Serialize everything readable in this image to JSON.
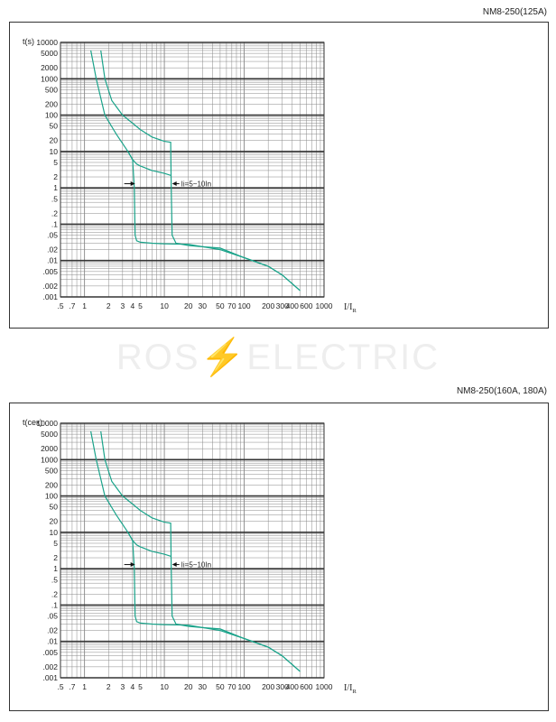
{
  "watermark": {
    "left": "ROS",
    "bolt": "⚡",
    "right": "ELECTRIC"
  },
  "colors": {
    "curve": "#1aa38a",
    "grid_major": "#333333",
    "grid_minor": "#888888",
    "frame": "#333333"
  },
  "chart_data": [
    {
      "type": "line",
      "title": "NM8-250(125A)",
      "ylabel": "t(s)",
      "xlabel": "I/IR",
      "x_scale": "log",
      "y_scale": "log",
      "xlim": [
        0.5,
        1000
      ],
      "ylim": [
        0.001,
        10000
      ],
      "x_ticks": [
        ".5",
        ".7",
        "1",
        "2",
        "3",
        "4",
        "5",
        "10",
        "20",
        "30",
        "50",
        "70",
        "100",
        "200",
        "300",
        "400",
        "600",
        "1000"
      ],
      "y_ticks": [
        "10000",
        "5000",
        "2000",
        "1000",
        "500",
        "200",
        "100",
        "50",
        "20",
        "10",
        "5",
        "2",
        "1",
        ".5",
        ".2",
        ".1",
        ".05",
        ".02",
        ".01",
        ".005",
        ".002",
        ".001"
      ],
      "annotation": "Ii=5~10In",
      "series": [
        {
          "x": [
            1.6,
            1.8,
            2.2,
            3,
            4,
            5,
            7,
            10,
            12,
            12.2,
            12.5,
            14,
            20,
            30,
            50,
            100,
            200,
            300,
            500
          ],
          "y": [
            6000,
            1000,
            250,
            100,
            60,
            40,
            25,
            19,
            18,
            1,
            0.05,
            0.03,
            0.026,
            0.024,
            0.022,
            0.012,
            0.007,
            0.004,
            0.0015
          ]
        },
        {
          "x": [
            1.2,
            1.4,
            1.8,
            2.5,
            3.5,
            4,
            4.2,
            4.3,
            4.5,
            5,
            7,
            10,
            20,
            50,
            100,
            200,
            300,
            500
          ],
          "y": [
            6000,
            1000,
            100,
            30,
            10,
            6,
            1,
            0.05,
            0.035,
            0.032,
            0.03,
            0.029,
            0.028,
            0.02,
            0.012,
            0.007,
            0.004,
            0.0015
          ]
        },
        {
          "x": [
            3.5,
            4,
            4.5,
            5,
            7,
            10,
            12
          ],
          "y": [
            10,
            6,
            4.5,
            4,
            3,
            2.5,
            2.2
          ]
        }
      ]
    },
    {
      "type": "line",
      "title": "NM8-250(160A, 180A)",
      "ylabel": "t(сек)",
      "xlabel": "I/IR",
      "x_scale": "log",
      "y_scale": "log",
      "xlim": [
        0.5,
        1000
      ],
      "ylim": [
        0.001,
        10000
      ],
      "x_ticks": [
        ".5",
        ".7",
        "1",
        "2",
        "3",
        "4",
        "5",
        "10",
        "20",
        "30",
        "50",
        "70",
        "100",
        "200",
        "300",
        "400",
        "600",
        "1000"
      ],
      "y_ticks": [
        "10000",
        "5000",
        "2000",
        "1000",
        "500",
        "200",
        "100",
        "50",
        "20",
        "10",
        "5",
        "2",
        "1",
        ".5",
        ".2",
        ".1",
        ".05",
        ".02",
        ".01",
        ".005",
        ".002",
        ".001"
      ],
      "annotation": "Ii=5~10In",
      "series": [
        {
          "x": [
            1.6,
            1.8,
            2.2,
            3,
            4,
            5,
            7,
            10,
            12,
            12.2,
            12.5,
            14,
            20,
            30,
            50,
            100,
            200,
            300,
            500
          ],
          "y": [
            6000,
            1000,
            250,
            100,
            60,
            40,
            25,
            19,
            18,
            1,
            0.05,
            0.03,
            0.026,
            0.024,
            0.022,
            0.012,
            0.007,
            0.004,
            0.0015
          ]
        },
        {
          "x": [
            1.2,
            1.4,
            1.8,
            2.5,
            3.5,
            4,
            4.2,
            4.3,
            4.5,
            5,
            7,
            10,
            20,
            50,
            100,
            200,
            300,
            500
          ],
          "y": [
            6000,
            1000,
            100,
            30,
            10,
            6,
            1,
            0.05,
            0.035,
            0.032,
            0.03,
            0.029,
            0.028,
            0.02,
            0.012,
            0.007,
            0.004,
            0.0015
          ]
        },
        {
          "x": [
            3.5,
            4,
            4.5,
            5,
            7,
            10,
            12
          ],
          "y": [
            10,
            6,
            4.5,
            4,
            3,
            2.5,
            2.2
          ]
        }
      ]
    }
  ]
}
